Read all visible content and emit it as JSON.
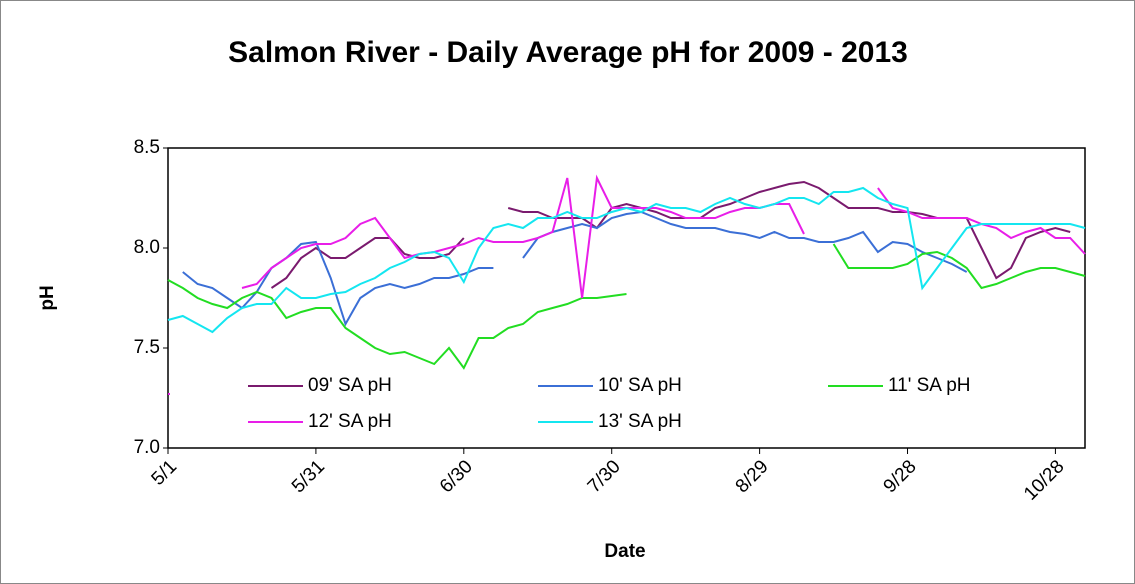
{
  "chart_data": {
    "type": "line",
    "title": "Salmon River - Daily Average pH for 2009 - 2013",
    "x_label": "Date",
    "y_label": "pH",
    "x": [
      "5/1",
      "5/4",
      "5/7",
      "5/10",
      "5/13",
      "5/16",
      "5/19",
      "5/22",
      "5/25",
      "5/28",
      "5/31",
      "6/3",
      "6/6",
      "6/9",
      "6/12",
      "6/15",
      "6/18",
      "6/21",
      "6/24",
      "6/27",
      "6/30",
      "7/3",
      "7/6",
      "7/9",
      "7/12",
      "7/15",
      "7/18",
      "7/21",
      "7/24",
      "7/27",
      "7/30",
      "8/2",
      "8/5",
      "8/8",
      "8/11",
      "8/14",
      "8/17",
      "8/20",
      "8/23",
      "8/26",
      "8/29",
      "9/1",
      "9/4",
      "9/7",
      "9/10",
      "9/13",
      "9/16",
      "9/19",
      "9/22",
      "9/25",
      "9/28",
      "10/1",
      "10/4",
      "10/7",
      "10/10",
      "10/13",
      "10/16",
      "10/19",
      "10/22",
      "10/25",
      "10/28",
      "10/31",
      "11/3"
    ],
    "xlim": [
      "5/1",
      "11/3"
    ],
    "xticks": [
      "5/1",
      "5/31",
      "6/30",
      "7/30",
      "8/29",
      "9/28",
      "10/28"
    ],
    "ylim": [
      7,
      8.5
    ],
    "yticks": [
      {
        "value": 7,
        "label": "7.0"
      },
      7.5,
      {
        "value": 8,
        "label": "8.0"
      },
      8.5
    ],
    "legend": "lower left",
    "series": [
      {
        "name": "09' SA pH",
        "color": "#7a1a6e",
        "values": [
          null,
          null,
          null,
          null,
          null,
          null,
          null,
          7.8,
          7.85,
          7.95,
          8.0,
          7.95,
          7.95,
          8.0,
          8.05,
          8.05,
          7.97,
          7.95,
          7.95,
          7.97,
          8.05,
          null,
          null,
          8.2,
          8.18,
          8.18,
          8.15,
          8.15,
          8.15,
          8.1,
          8.2,
          8.22,
          8.2,
          8.18,
          8.15,
          8.15,
          8.15,
          8.2,
          8.22,
          8.25,
          8.28,
          8.3,
          8.32,
          8.33,
          8.3,
          8.25,
          8.2,
          8.2,
          8.2,
          8.18,
          8.18,
          8.17,
          8.15,
          8.15,
          8.15,
          8.0,
          7.85,
          7.9,
          8.05,
          8.08,
          8.1,
          8.08,
          null
        ]
      },
      {
        "name": "10' SA pH",
        "color": "#3b6fd6",
        "values": [
          null,
          7.88,
          7.82,
          7.8,
          7.75,
          7.7,
          7.78,
          7.9,
          7.95,
          8.02,
          8.03,
          7.85,
          7.62,
          7.75,
          7.8,
          7.82,
          7.8,
          7.82,
          7.85,
          7.85,
          7.87,
          7.9,
          7.9,
          null,
          7.95,
          8.05,
          8.08,
          8.1,
          8.12,
          8.1,
          8.15,
          8.17,
          8.18,
          8.15,
          8.12,
          8.1,
          8.1,
          8.1,
          8.08,
          8.07,
          8.05,
          8.08,
          8.05,
          8.05,
          8.03,
          8.03,
          8.05,
          8.08,
          7.98,
          8.03,
          8.02,
          7.98,
          7.95,
          7.92,
          7.88,
          null,
          null,
          null,
          null,
          null,
          null,
          null,
          null
        ]
      },
      {
        "name": "11' SA pH",
        "color": "#22dd22",
        "values": [
          7.84,
          7.8,
          7.75,
          7.72,
          7.7,
          7.75,
          7.78,
          7.75,
          7.65,
          7.68,
          7.7,
          7.7,
          7.6,
          7.55,
          7.5,
          7.47,
          7.48,
          7.45,
          7.42,
          7.5,
          7.4,
          7.55,
          7.55,
          7.6,
          7.62,
          7.68,
          7.7,
          7.72,
          7.75,
          7.75,
          7.76,
          7.77,
          null,
          null,
          null,
          null,
          null,
          null,
          null,
          null,
          null,
          null,
          null,
          null,
          null,
          8.02,
          7.9,
          7.9,
          7.9,
          7.9,
          7.92,
          7.97,
          7.98,
          7.95,
          7.9,
          7.8,
          7.82,
          7.85,
          7.88,
          7.9,
          7.9,
          7.88,
          7.86
        ]
      },
      {
        "name": "12' SA pH",
        "color": "#e81ee8",
        "values": [
          7.27,
          null,
          null,
          null,
          null,
          7.8,
          7.82,
          7.9,
          7.95,
          8.0,
          8.02,
          8.02,
          8.05,
          8.12,
          8.15,
          8.05,
          7.95,
          7.97,
          7.98,
          8.0,
          8.02,
          8.05,
          8.03,
          8.03,
          8.03,
          8.05,
          8.08,
          8.35,
          7.75,
          8.35,
          8.2,
          8.2,
          8.2,
          8.2,
          8.18,
          8.15,
          8.15,
          8.15,
          8.18,
          8.2,
          8.2,
          8.22,
          8.22,
          8.07,
          null,
          null,
          null,
          null,
          8.3,
          8.2,
          8.18,
          8.15,
          8.15,
          8.15,
          8.15,
          8.12,
          8.1,
          8.05,
          8.08,
          8.1,
          8.05,
          8.05,
          7.97
        ]
      },
      {
        "name": "13' SA pH",
        "color": "#14e6f0",
        "values": [
          7.64,
          7.66,
          7.62,
          7.58,
          7.65,
          7.7,
          7.72,
          7.72,
          7.8,
          7.75,
          7.75,
          7.77,
          7.78,
          7.82,
          7.85,
          7.9,
          7.93,
          7.97,
          7.98,
          7.95,
          7.83,
          8.0,
          8.1,
          8.12,
          8.1,
          8.15,
          8.15,
          8.18,
          8.15,
          8.15,
          8.18,
          8.2,
          8.18,
          8.22,
          8.2,
          8.2,
          8.18,
          8.22,
          8.25,
          8.22,
          8.2,
          8.22,
          8.25,
          8.25,
          8.22,
          8.28,
          8.28,
          8.3,
          8.25,
          8.22,
          8.2,
          7.8,
          7.9,
          8.0,
          8.1,
          8.12,
          8.12,
          8.12,
          8.12,
          8.12,
          8.12,
          8.12,
          8.1
        ]
      }
    ]
  }
}
